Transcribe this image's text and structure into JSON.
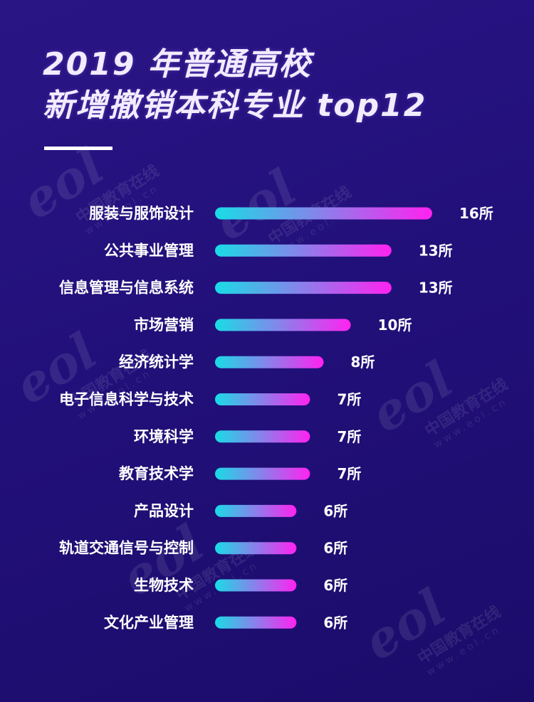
{
  "title": {
    "line1": "2019 年普通高校",
    "line2": "新增撤销本科专业 top12"
  },
  "watermark": {
    "logo": "eol",
    "name": "中国教育在线",
    "url": "www.eol.cn"
  },
  "colors": {
    "background": "#22107a",
    "bar_start": "#19dce6",
    "bar_end": "#ff22f0",
    "text": "#ffffff"
  },
  "chart_data": {
    "type": "bar",
    "orientation": "horizontal",
    "title": "2019 年普通高校新增撤销本科专业 top12",
    "categories": [
      "服装与服饰设计",
      "公共事业管理",
      "信息管理与信息系统",
      "市场营销",
      "经济统计学",
      "电子信息科学与技术",
      "环境科学",
      "教育技术学",
      "产品设计",
      "轨道交通信号与控制",
      "生物技术",
      "文化产业管理"
    ],
    "values": [
      16,
      13,
      13,
      10,
      8,
      7,
      7,
      7,
      6,
      6,
      6,
      6
    ],
    "value_labels": [
      "16所",
      "13所",
      "13所",
      "10所",
      "8所",
      "7所",
      "7所",
      "7所",
      "6所",
      "6所",
      "6所",
      "6所"
    ],
    "unit": "所",
    "grid": false,
    "legend": "none"
  }
}
